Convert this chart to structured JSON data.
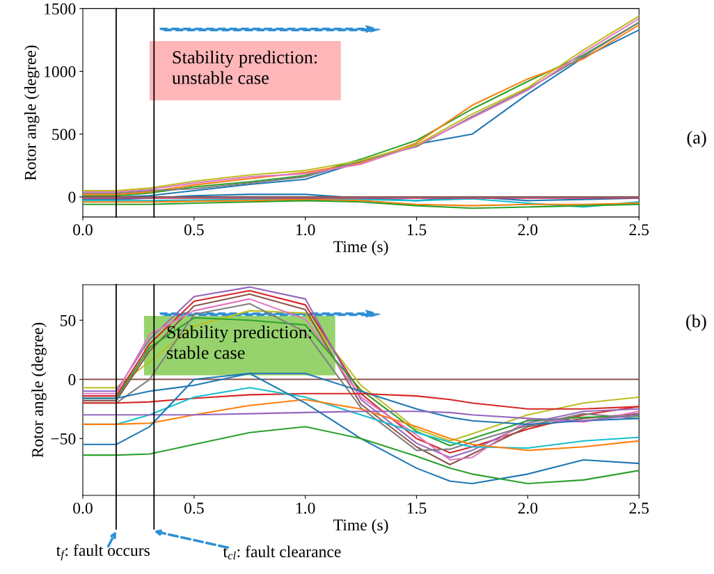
{
  "chart_data": [
    {
      "type": "line",
      "xlabel": "Time (s)",
      "ylabel": "Rotor angle (degree)",
      "x": [
        0,
        0.15,
        0.3,
        0.5,
        0.75,
        1.0,
        1.25,
        1.5,
        1.75,
        2.0,
        2.25,
        2.5
      ],
      "xlim": [
        0,
        2.5
      ],
      "xticks": [
        {
          "value": 0,
          "label": "0.0"
        },
        0.5,
        {
          "value": 1,
          "label": "1.0"
        },
        1.5,
        {
          "value": 2,
          "label": "2.0"
        },
        2.5
      ],
      "ylim": [
        -160,
        1500
      ],
      "yticks": [
        0,
        500,
        1000,
        1500
      ],
      "grid": false,
      "legend": false,
      "series": [
        {
          "color": "#1f77b4",
          "values": [
            0,
            0,
            10,
            50,
            100,
            140,
            280,
            420,
            500,
            820,
            1110,
            1330
          ]
        },
        {
          "color": "#2ca02c",
          "values": [
            10,
            10,
            30,
            80,
            120,
            170,
            300,
            450,
            700,
            920,
            1130,
            1390
          ]
        },
        {
          "color": "#ff7f0e",
          "values": [
            20,
            20,
            40,
            95,
            145,
            195,
            270,
            430,
            730,
            940,
            1100,
            1370
          ]
        },
        {
          "color": "#7f7f7f",
          "values": [
            30,
            30,
            50,
            65,
            110,
            160,
            285,
            400,
            640,
            860,
            1120,
            1390
          ]
        },
        {
          "color": "#e377c2",
          "values": [
            40,
            40,
            60,
            110,
            160,
            185,
            260,
            410,
            630,
            850,
            1150,
            1420
          ]
        },
        {
          "color": "#bcbd22",
          "values": [
            50,
            50,
            70,
            125,
            175,
            210,
            290,
            415,
            660,
            870,
            1170,
            1440
          ]
        },
        {
          "color": "#1f77b4",
          "values": [
            -20,
            -20,
            -10,
            10,
            20,
            20,
            -10,
            -30,
            0,
            -30,
            -20,
            -10
          ]
        },
        {
          "color": "#17becf",
          "values": [
            -30,
            -30,
            -30,
            -25,
            -20,
            -15,
            -20,
            -30,
            -15,
            -50,
            -80,
            -40
          ]
        },
        {
          "color": "#ff7f0e",
          "values": [
            -40,
            -40,
            -40,
            -35,
            -30,
            -20,
            -30,
            -60,
            -70,
            -60,
            -60,
            -50
          ]
        },
        {
          "color": "#2ca02c",
          "values": [
            -60,
            -60,
            -60,
            -50,
            -40,
            -30,
            -40,
            -70,
            -90,
            -80,
            -70,
            -60
          ]
        },
        {
          "color": "#d62728",
          "values": [
            -10,
            -10,
            -10,
            -10,
            -10,
            -10,
            -10,
            -10,
            -10,
            -10,
            -10,
            -10
          ]
        },
        {
          "color": "#9467bd",
          "values": [
            -5,
            -5,
            -5,
            -5,
            -5,
            -5,
            -5,
            -5,
            -5,
            -5,
            -5,
            -5
          ]
        },
        {
          "color": "#8c564b",
          "values": [
            0,
            0,
            0,
            0,
            0,
            0,
            0,
            0,
            0,
            0,
            0,
            0
          ]
        }
      ],
      "ref_lines": [
        {
          "axis": "x",
          "value": 0.15,
          "color": "#000000"
        },
        {
          "axis": "x",
          "value": 0.32,
          "color": "#000000"
        }
      ],
      "annotations": [
        "Stability prediction:\nunstable case",
        "(a)"
      ]
    },
    {
      "type": "line",
      "xlabel": "Time (s)",
      "ylabel": "Rotor angle (degree)",
      "x": [
        0,
        0.15,
        0.3,
        0.5,
        0.75,
        1.0,
        1.25,
        1.5,
        1.65,
        1.75,
        2.0,
        2.25,
        2.5
      ],
      "xlim": [
        0,
        2.5
      ],
      "xticks": [
        {
          "value": 0,
          "label": "0.0"
        },
        0.5,
        {
          "value": 1,
          "label": "1.0"
        },
        1.5,
        {
          "value": 2,
          "label": "2.0"
        },
        2.5
      ],
      "ylim": [
        -98,
        80
      ],
      "yticks": [
        {
          "value": -50,
          "label": "−50"
        },
        0,
        50
      ],
      "grid": false,
      "legend": false,
      "series": [
        {
          "color": "#8c564b",
          "values": [
            0,
            0,
            0,
            0,
            0,
            0,
            0,
            0,
            0,
            0,
            0,
            0,
            0
          ]
        },
        {
          "color": "#bcbd22",
          "values": [
            -7,
            -7,
            15,
            45,
            58,
            56,
            -5,
            -42,
            -52,
            -46,
            -30,
            -20,
            -15
          ]
        },
        {
          "color": "#d62728",
          "values": [
            -14,
            -14,
            30,
            66,
            75,
            63,
            -12,
            -50,
            -62,
            -57,
            -42,
            -30,
            -23
          ]
        },
        {
          "color": "#9467bd",
          "values": [
            -10,
            -10,
            34,
            70,
            78,
            68,
            -17,
            -54,
            -66,
            -60,
            -37,
            -27,
            -25
          ]
        },
        {
          "color": "#8c564b",
          "values": [
            -18,
            -18,
            24,
            62,
            72,
            59,
            -21,
            -57,
            -72,
            -63,
            -40,
            -33,
            -29
          ]
        },
        {
          "color": "#e377c2",
          "values": [
            -12,
            -12,
            38,
            58,
            68,
            51,
            -15,
            -47,
            -68,
            -66,
            -34,
            -36,
            -27
          ]
        },
        {
          "color": "#2ca02c",
          "values": [
            -16,
            -16,
            27,
            52,
            50,
            46,
            -9,
            -44,
            -56,
            -50,
            -35,
            -32,
            -31
          ]
        },
        {
          "color": "#7f7f7f",
          "values": [
            -20,
            -20,
            0,
            55,
            64,
            40,
            -24,
            -60,
            -59,
            -53,
            -39,
            -29,
            -33
          ]
        },
        {
          "color": "#1f77b4",
          "values": [
            -16,
            -16,
            -10,
            -5,
            5,
            5,
            -10,
            -25,
            -32,
            -35,
            -38,
            -35,
            -33
          ]
        },
        {
          "color": "#d62728",
          "values": [
            -20,
            -20,
            -19,
            -16,
            -13,
            -12,
            -12,
            -14,
            -17,
            -20,
            -25,
            -25,
            -23
          ]
        },
        {
          "color": "#17becf",
          "values": [
            -38,
            -38,
            -30,
            -15,
            -7,
            -15,
            -30,
            -45,
            -53,
            -57,
            -58,
            -52,
            -49
          ]
        },
        {
          "color": "#ff7f0e",
          "values": [
            -38,
            -38,
            -37,
            -30,
            -22,
            -17,
            -25,
            -40,
            -50,
            -55,
            -60,
            -57,
            -52
          ]
        },
        {
          "color": "#9467bd",
          "values": [
            -30,
            -30,
            -30,
            -30,
            -29,
            -28,
            -27,
            -27,
            -28,
            -30,
            -33,
            -35,
            -30
          ]
        },
        {
          "color": "#1f77b4",
          "values": [
            -55,
            -55,
            -40,
            0,
            5,
            -20,
            -50,
            -75,
            -86,
            -88,
            -80,
            -68,
            -71
          ]
        },
        {
          "color": "#2ca02c",
          "values": [
            -64,
            -64,
            -63,
            -55,
            -45,
            -40,
            -50,
            -65,
            -75,
            -80,
            -88,
            -85,
            -77
          ]
        }
      ],
      "ref_lines": [
        {
          "axis": "x",
          "value": 0.15,
          "color": "#000000",
          "label": "t$_{f}$: fault occurs"
        },
        {
          "axis": "x",
          "value": 0.32,
          "color": "#000000",
          "label": "t$_{cl}$: fault clearance"
        }
      ],
      "annotations": [
        "Stability prediction:\nstable case",
        "(b)"
      ]
    }
  ]
}
